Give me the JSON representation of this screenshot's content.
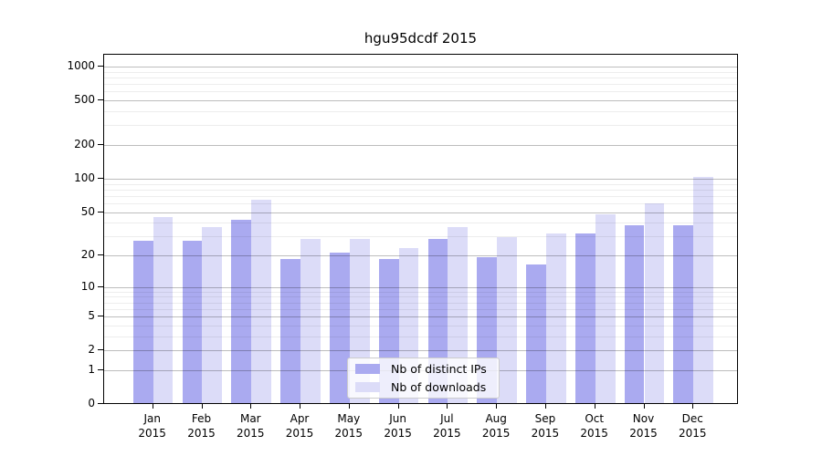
{
  "title": "hgu95dcdf 2015",
  "chart_data": {
    "type": "bar",
    "title": "hgu95dcdf 2015",
    "year_label": "2015",
    "categories": [
      "Jan",
      "Feb",
      "Mar",
      "Apr",
      "May",
      "Jun",
      "Jul",
      "Aug",
      "Sep",
      "Oct",
      "Nov",
      "Dec"
    ],
    "series": [
      {
        "name": "Nb of distinct IPs",
        "color": "#aaaaf0",
        "values": [
          27,
          27,
          42,
          18,
          21,
          18,
          28,
          19,
          16,
          31,
          37,
          37
        ]
      },
      {
        "name": "Nb of downloads",
        "color": "#dcdcf8",
        "values": [
          44,
          36,
          63,
          28,
          28,
          23,
          36,
          29,
          31,
          47,
          59,
          102
        ]
      }
    ],
    "y_ticks": [
      0,
      1,
      2,
      5,
      10,
      20,
      50,
      100,
      200,
      500,
      1000
    ],
    "scale": "log1p",
    "xlabel": "",
    "ylabel": "",
    "grid": true,
    "legend_position": "lower center"
  }
}
